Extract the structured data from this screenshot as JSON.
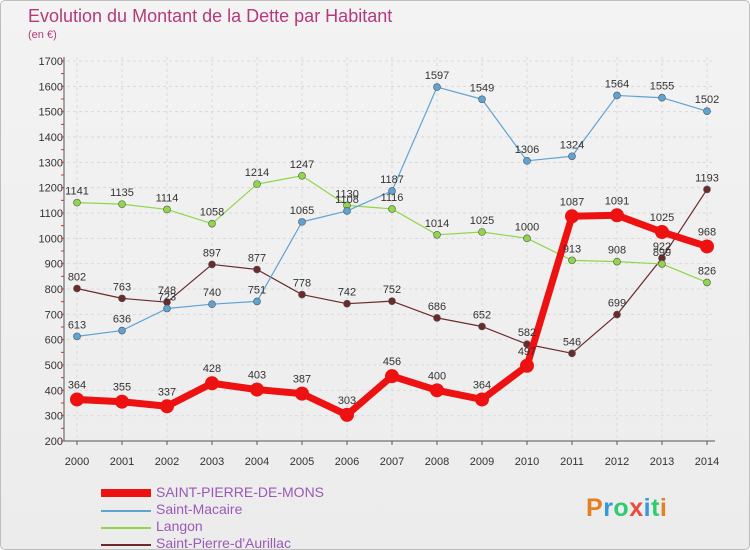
{
  "title": "Evolution du Montant de la Dette par Habitant",
  "subtitle": "(en €)",
  "colors": {
    "title": "#b43a7a",
    "grid": "#d9d9d9",
    "axis": "#555555",
    "legend_text": "#9b59b6",
    "tick_accent": "#cc3333"
  },
  "logo": {
    "text": "Proxiti",
    "letters": [
      "P",
      "r",
      "o",
      "x",
      "i",
      "t",
      "i"
    ],
    "colors": [
      "#e67e22",
      "#3498db",
      "#2ecc71",
      "#e74c3c",
      "#3498db",
      "#2ecc71",
      "#e67e22"
    ]
  },
  "chart_data": {
    "type": "line",
    "title": "Evolution du Montant de la Dette par Habitant",
    "subtitle": "(en €)",
    "x": [
      "2000",
      "2001",
      "2002",
      "2003",
      "2004",
      "2005",
      "2006",
      "2007",
      "2008",
      "2009",
      "2010",
      "2011",
      "2012",
      "2013",
      "2014"
    ],
    "ylim": [
      200,
      1700
    ],
    "yticks": [
      200,
      300,
      400,
      500,
      600,
      700,
      800,
      900,
      1000,
      1100,
      1200,
      1300,
      1400,
      1500,
      1600,
      1700
    ],
    "grid": true,
    "legend_position": "bottom-left",
    "series": [
      {
        "name": "Saint-Pierre-d'Aurillac",
        "color": "#6b2b2b",
        "values": [
          802,
          763,
          748,
          897,
          877,
          778,
          742,
          752,
          686,
          652,
          582,
          546,
          699,
          922,
          1193
        ],
        "labels": [
          "802",
          "763",
          "748",
          "897",
          "877",
          "778",
          "742",
          "752",
          "686",
          "652",
          "582",
          "546",
          "699",
          "922",
          "1193"
        ]
      },
      {
        "name": "Langon",
        "color": "#8fd64a",
        "values": [
          1141,
          1135,
          1114,
          1058,
          1214,
          1247,
          1130,
          1116,
          1014,
          1025,
          1000,
          913,
          908,
          899,
          826
        ],
        "labels": [
          "1141",
          "1135",
          "1114",
          "1058",
          "1214",
          "1247",
          "1130",
          "1116",
          "1014",
          "1025",
          "1000",
          "913",
          "908",
          "899",
          "826"
        ]
      },
      {
        "name": "Saint-Macaire",
        "color": "#5fa3d3",
        "values": [
          613,
          636,
          723,
          740,
          751,
          1065,
          1108,
          1187,
          1597,
          1549,
          1306,
          1324,
          1564,
          1555,
          1502
        ],
        "labels": [
          "613",
          "636",
          "723",
          "740",
          "751",
          "1065",
          "1108",
          "1187",
          "1597",
          "1549",
          "1306",
          "1324",
          "1564",
          "1555",
          "1502"
        ]
      },
      {
        "name": "SAINT-PIERRE-DE-MONS",
        "color": "#ee1111",
        "values": [
          364,
          355,
          337,
          428,
          403,
          387,
          303,
          456,
          400,
          364,
          497,
          1087,
          1091,
          1025,
          968
        ],
        "labels": [
          "364",
          "355",
          "337",
          "428",
          "403",
          "387",
          "303",
          "456",
          "400",
          "364",
          "497",
          "1087",
          "1091",
          "1025",
          "968"
        ],
        "thick": true
      }
    ]
  },
  "legend": [
    {
      "label": "SAINT-PIERRE-DE-MONS",
      "color": "#ee1111",
      "thick": true
    },
    {
      "label": "Saint-Macaire",
      "color": "#5fa3d3",
      "thick": false
    },
    {
      "label": "Langon",
      "color": "#8fd64a",
      "thick": false
    },
    {
      "label": "Saint-Pierre-d'Aurillac",
      "color": "#6b2b2b",
      "thick": false
    }
  ]
}
